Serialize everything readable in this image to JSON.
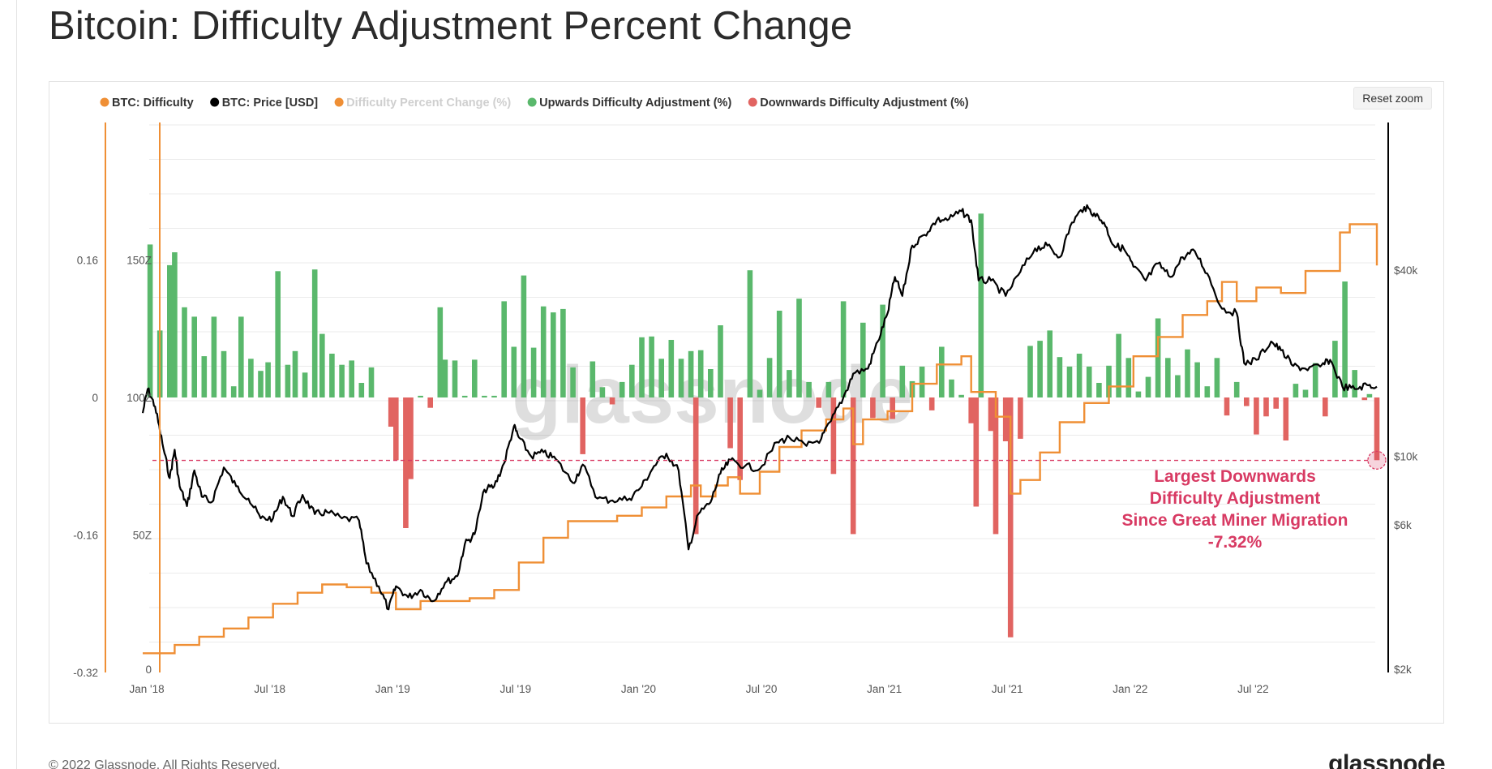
{
  "page": {
    "title": "Bitcoin: Difficulty Adjustment Percent Change",
    "copyright": "© 2022 Glassnode. All Rights Reserved.",
    "brand": "glassnode",
    "watermark": "glassnode"
  },
  "toolbar": {
    "reset_zoom_label": "Reset zoom"
  },
  "colors": {
    "difficulty": "#ef8f35",
    "price": "#000000",
    "percent_change": "#f4b27a",
    "upward": "#5ab86c",
    "downward": "#e16461",
    "annotation": "#d83a63",
    "grid": "#ebebeb"
  },
  "chart_data": {
    "type": "combo",
    "title": "Bitcoin: Difficulty Adjustment Percent Change",
    "legend": [
      {
        "label": "BTC: Difficulty",
        "color": "#ef8f35",
        "faded": false
      },
      {
        "label": "BTC: Price [USD]",
        "color": "#000000",
        "faded": false
      },
      {
        "label": "Difficulty Percent Change (%)",
        "color": "#ef8f35",
        "faded": true
      },
      {
        "label": "Upwards Difficulty Adjustment (%)",
        "color": "#5ab86c",
        "faded": false
      },
      {
        "label": "Downwards Difficulty Adjustment (%)",
        "color": "#e16461",
        "faded": false
      }
    ],
    "x_axis": {
      "start": 2017.97,
      "end": 2023.0,
      "ticks": [
        {
          "value": 2018.0,
          "label": "Jan '18"
        },
        {
          "value": 2018.5,
          "label": "Jul '18"
        },
        {
          "value": 2019.0,
          "label": "Jan '19"
        },
        {
          "value": 2019.5,
          "label": "Jul '19"
        },
        {
          "value": 2020.0,
          "label": "Jan '20"
        },
        {
          "value": 2020.5,
          "label": "Jul '20"
        },
        {
          "value": 2021.0,
          "label": "Jan '21"
        },
        {
          "value": 2021.5,
          "label": "Jul '21"
        },
        {
          "value": 2022.0,
          "label": "Jan '22"
        },
        {
          "value": 2022.5,
          "label": "Jul '22"
        }
      ]
    },
    "y_axis_percent": {
      "range": [
        -0.32,
        0.32
      ],
      "ticks": [
        {
          "value": 0.16,
          "label": "0.16"
        },
        {
          "value": 0,
          "label": "0"
        },
        {
          "value": -0.16,
          "label": "-0.16"
        },
        {
          "value": -0.32,
          "label": "-0.32"
        }
      ]
    },
    "y_axis_difficulty": {
      "unit": "Z",
      "range": [
        0,
        200
      ],
      "ticks": [
        {
          "value": 150,
          "label": "150Z"
        },
        {
          "value": 100,
          "label": "100Z"
        },
        {
          "value": 50,
          "label": "50Z"
        },
        {
          "value": 0,
          "label": "0"
        }
      ]
    },
    "y_axis_price": {
      "scale": "log",
      "range": [
        2000,
        120000
      ],
      "ticks": [
        {
          "value": 40000,
          "label": "$40k"
        },
        {
          "value": 10000,
          "label": "$10k"
        },
        {
          "value": 6000,
          "label": "$6k"
        },
        {
          "value": 2000,
          "label": "$2k"
        }
      ]
    },
    "adjustments": [
      {
        "t": 2018.0,
        "pct": 0.178
      },
      {
        "t": 2018.04,
        "pct": 0.078
      },
      {
        "t": 2018.08,
        "pct": 0.154
      },
      {
        "t": 2018.1,
        "pct": 0.169
      },
      {
        "t": 2018.14,
        "pct": 0.105
      },
      {
        "t": 2018.18,
        "pct": 0.094
      },
      {
        "t": 2018.22,
        "pct": 0.048
      },
      {
        "t": 2018.26,
        "pct": 0.094
      },
      {
        "t": 2018.3,
        "pct": 0.054
      },
      {
        "t": 2018.34,
        "pct": 0.013
      },
      {
        "t": 2018.37,
        "pct": 0.094
      },
      {
        "t": 2018.41,
        "pct": 0.045
      },
      {
        "t": 2018.45,
        "pct": 0.031
      },
      {
        "t": 2018.48,
        "pct": 0.041
      },
      {
        "t": 2018.52,
        "pct": 0.147
      },
      {
        "t": 2018.56,
        "pct": 0.038
      },
      {
        "t": 2018.59,
        "pct": 0.054
      },
      {
        "t": 2018.63,
        "pct": 0.029
      },
      {
        "t": 2018.67,
        "pct": 0.149
      },
      {
        "t": 2018.7,
        "pct": 0.074
      },
      {
        "t": 2018.74,
        "pct": 0.051
      },
      {
        "t": 2018.78,
        "pct": 0.038
      },
      {
        "t": 2018.82,
        "pct": 0.043
      },
      {
        "t": 2018.86,
        "pct": 0.017
      },
      {
        "t": 2018.9,
        "pct": 0.035
      },
      {
        "t": 2018.98,
        "pct": -0.034
      },
      {
        "t": 2019.0,
        "pct": -0.073
      },
      {
        "t": 2019.04,
        "pct": -0.152
      },
      {
        "t": 2019.06,
        "pct": -0.095
      },
      {
        "t": 2019.1,
        "pct": 0.002
      },
      {
        "t": 2019.14,
        "pct": -0.012
      },
      {
        "t": 2019.18,
        "pct": 0.105
      },
      {
        "t": 2019.2,
        "pct": 0.044
      },
      {
        "t": 2019.24,
        "pct": 0.043
      },
      {
        "t": 2019.28,
        "pct": 0.002
      },
      {
        "t": 2019.32,
        "pct": 0.044
      },
      {
        "t": 2019.36,
        "pct": 0.002
      },
      {
        "t": 2019.4,
        "pct": 0.002
      },
      {
        "t": 2019.44,
        "pct": 0.112
      },
      {
        "t": 2019.48,
        "pct": 0.059
      },
      {
        "t": 2019.52,
        "pct": 0.142
      },
      {
        "t": 2019.56,
        "pct": 0.058
      },
      {
        "t": 2019.6,
        "pct": 0.106
      },
      {
        "t": 2019.64,
        "pct": 0.099
      },
      {
        "t": 2019.68,
        "pct": 0.103
      },
      {
        "t": 2019.72,
        "pct": 0.035
      },
      {
        "t": 2019.76,
        "pct": -0.066
      },
      {
        "t": 2019.8,
        "pct": 0.042
      },
      {
        "t": 2019.84,
        "pct": 0.012
      },
      {
        "t": 2019.88,
        "pct": -0.008
      },
      {
        "t": 2019.92,
        "pct": 0.018
      },
      {
        "t": 2019.96,
        "pct": 0.038
      },
      {
        "t": 2020.0,
        "pct": 0.07
      },
      {
        "t": 2020.04,
        "pct": 0.071
      },
      {
        "t": 2020.08,
        "pct": 0.045
      },
      {
        "t": 2020.12,
        "pct": 0.067
      },
      {
        "t": 2020.16,
        "pct": 0.045
      },
      {
        "t": 2020.2,
        "pct": 0.054
      },
      {
        "t": 2020.22,
        "pct": -0.159
      },
      {
        "t": 2020.24,
        "pct": 0.055
      },
      {
        "t": 2020.28,
        "pct": 0.033
      },
      {
        "t": 2020.32,
        "pct": 0.084
      },
      {
        "t": 2020.36,
        "pct": -0.059
      },
      {
        "t": 2020.4,
        "pct": -0.096
      },
      {
        "t": 2020.44,
        "pct": 0.148
      },
      {
        "t": 2020.48,
        "pct": 0.009
      },
      {
        "t": 2020.52,
        "pct": 0.046
      },
      {
        "t": 2020.56,
        "pct": 0.101
      },
      {
        "t": 2020.6,
        "pct": 0.032
      },
      {
        "t": 2020.64,
        "pct": 0.115
      },
      {
        "t": 2020.68,
        "pct": 0.018
      },
      {
        "t": 2020.72,
        "pct": -0.012
      },
      {
        "t": 2020.76,
        "pct": 0.018
      },
      {
        "t": 2020.78,
        "pct": -0.089
      },
      {
        "t": 2020.82,
        "pct": 0.112
      },
      {
        "t": 2020.86,
        "pct": -0.159
      },
      {
        "t": 2020.9,
        "pct": 0.087
      },
      {
        "t": 2020.94,
        "pct": -0.024
      },
      {
        "t": 2020.98,
        "pct": 0.108
      },
      {
        "t": 2021.02,
        "pct": -0.025
      },
      {
        "t": 2021.06,
        "pct": 0.037
      },
      {
        "t": 2021.1,
        "pct": 0.019
      },
      {
        "t": 2021.14,
        "pct": 0.036
      },
      {
        "t": 2021.18,
        "pct": -0.015
      },
      {
        "t": 2021.22,
        "pct": 0.059
      },
      {
        "t": 2021.26,
        "pct": 0.021
      },
      {
        "t": 2021.3,
        "pct": 0.003
      },
      {
        "t": 2021.34,
        "pct": -0.03
      },
      {
        "t": 2021.36,
        "pct": -0.127
      },
      {
        "t": 2021.38,
        "pct": 0.214
      },
      {
        "t": 2021.42,
        "pct": -0.039
      },
      {
        "t": 2021.44,
        "pct": -0.159
      },
      {
        "t": 2021.48,
        "pct": -0.051
      },
      {
        "t": 2021.5,
        "pct": -0.279
      },
      {
        "t": 2021.54,
        "pct": -0.048
      },
      {
        "t": 2021.58,
        "pct": 0.06
      },
      {
        "t": 2021.62,
        "pct": 0.066
      },
      {
        "t": 2021.66,
        "pct": 0.078
      },
      {
        "t": 2021.7,
        "pct": 0.047
      },
      {
        "t": 2021.74,
        "pct": 0.036
      },
      {
        "t": 2021.78,
        "pct": 0.051
      },
      {
        "t": 2021.82,
        "pct": 0.036
      },
      {
        "t": 2021.86,
        "pct": 0.017
      },
      {
        "t": 2021.9,
        "pct": 0.037
      },
      {
        "t": 2021.94,
        "pct": 0.074
      },
      {
        "t": 2021.98,
        "pct": 0.046
      },
      {
        "t": 2022.02,
        "pct": 0.007
      },
      {
        "t": 2022.06,
        "pct": 0.024
      },
      {
        "t": 2022.1,
        "pct": 0.092
      },
      {
        "t": 2022.14,
        "pct": 0.046
      },
      {
        "t": 2022.18,
        "pct": 0.026
      },
      {
        "t": 2022.22,
        "pct": 0.056
      },
      {
        "t": 2022.26,
        "pct": 0.041
      },
      {
        "t": 2022.3,
        "pct": 0.013
      },
      {
        "t": 2022.34,
        "pct": 0.046
      },
      {
        "t": 2022.38,
        "pct": -0.021
      },
      {
        "t": 2022.42,
        "pct": 0.018
      },
      {
        "t": 2022.46,
        "pct": -0.01
      },
      {
        "t": 2022.5,
        "pct": -0.043
      },
      {
        "t": 2022.54,
        "pct": -0.022
      },
      {
        "t": 2022.58,
        "pct": -0.013
      },
      {
        "t": 2022.62,
        "pct": -0.05
      },
      {
        "t": 2022.66,
        "pct": 0.016
      },
      {
        "t": 2022.7,
        "pct": 0.009
      },
      {
        "t": 2022.74,
        "pct": 0.04
      },
      {
        "t": 2022.78,
        "pct": -0.022
      },
      {
        "t": 2022.82,
        "pct": 0.066
      },
      {
        "t": 2022.86,
        "pct": 0.135
      },
      {
        "t": 2022.9,
        "pct": 0.032
      },
      {
        "t": 2022.94,
        "pct": -0.003
      },
      {
        "t": 2022.96,
        "pct": 0.004
      },
      {
        "t": 2022.99,
        "pct": -0.073
      }
    ],
    "difficulty": [
      [
        2017.97,
        7
      ],
      [
        2018.1,
        10
      ],
      [
        2018.2,
        13
      ],
      [
        2018.3,
        16
      ],
      [
        2018.4,
        20
      ],
      [
        2018.5,
        25
      ],
      [
        2018.6,
        29
      ],
      [
        2018.7,
        32
      ],
      [
        2018.8,
        31
      ],
      [
        2018.9,
        29
      ],
      [
        2019.0,
        23
      ],
      [
        2019.1,
        26
      ],
      [
        2019.2,
        26
      ],
      [
        2019.3,
        27
      ],
      [
        2019.4,
        30
      ],
      [
        2019.5,
        40
      ],
      [
        2019.6,
        49
      ],
      [
        2019.7,
        55
      ],
      [
        2019.8,
        55
      ],
      [
        2019.9,
        57
      ],
      [
        2020.0,
        60
      ],
      [
        2020.1,
        64
      ],
      [
        2020.2,
        68
      ],
      [
        2020.24,
        64
      ],
      [
        2020.3,
        68
      ],
      [
        2020.35,
        71
      ],
      [
        2020.4,
        65
      ],
      [
        2020.48,
        73
      ],
      [
        2020.56,
        82
      ],
      [
        2020.65,
        88
      ],
      [
        2020.75,
        92
      ],
      [
        2020.82,
        96
      ],
      [
        2020.86,
        83
      ],
      [
        2020.9,
        92
      ],
      [
        2021.0,
        95
      ],
      [
        2021.1,
        105
      ],
      [
        2021.2,
        112
      ],
      [
        2021.3,
        115
      ],
      [
        2021.34,
        102
      ],
      [
        2021.38,
        102
      ],
      [
        2021.44,
        93
      ],
      [
        2021.5,
        65
      ],
      [
        2021.54,
        70
      ],
      [
        2021.62,
        80
      ],
      [
        2021.7,
        91
      ],
      [
        2021.8,
        98
      ],
      [
        2021.9,
        104
      ],
      [
        2022.0,
        115
      ],
      [
        2022.1,
        122
      ],
      [
        2022.2,
        130
      ],
      [
        2022.3,
        135
      ],
      [
        2022.36,
        142
      ],
      [
        2022.42,
        135
      ],
      [
        2022.5,
        140
      ],
      [
        2022.6,
        138
      ],
      [
        2022.7,
        146
      ],
      [
        2022.8,
        146
      ],
      [
        2022.84,
        160
      ],
      [
        2022.88,
        163
      ],
      [
        2022.96,
        163
      ],
      [
        2022.99,
        148
      ]
    ],
    "price": [
      [
        2017.97,
        13800
      ],
      [
        2017.99,
        16500
      ],
      [
        2018.02,
        14500
      ],
      [
        2018.05,
        11000
      ],
      [
        2018.08,
        8500
      ],
      [
        2018.1,
        10500
      ],
      [
        2018.12,
        8000
      ],
      [
        2018.15,
        6900
      ],
      [
        2018.18,
        9000
      ],
      [
        2018.21,
        7400
      ],
      [
        2018.25,
        7100
      ],
      [
        2018.3,
        9200
      ],
      [
        2018.35,
        8000
      ],
      [
        2018.4,
        7300
      ],
      [
        2018.45,
        6300
      ],
      [
        2018.5,
        6300
      ],
      [
        2018.54,
        7400
      ],
      [
        2018.58,
        6400
      ],
      [
        2018.62,
        7500
      ],
      [
        2018.67,
        6500
      ],
      [
        2018.72,
        6600
      ],
      [
        2018.78,
        6300
      ],
      [
        2018.85,
        6200
      ],
      [
        2018.88,
        4500
      ],
      [
        2018.93,
        3800
      ],
      [
        2018.97,
        3200
      ],
      [
        2019.0,
        3800
      ],
      [
        2019.05,
        3500
      ],
      [
        2019.1,
        3700
      ],
      [
        2019.15,
        3400
      ],
      [
        2019.2,
        3900
      ],
      [
        2019.25,
        4100
      ],
      [
        2019.28,
        5200
      ],
      [
        2019.32,
        5600
      ],
      [
        2019.36,
        7800
      ],
      [
        2019.4,
        8000
      ],
      [
        2019.44,
        9500
      ],
      [
        2019.48,
        12500
      ],
      [
        2019.5,
        11500
      ],
      [
        2019.55,
        10000
      ],
      [
        2019.6,
        10300
      ],
      [
        2019.65,
        9800
      ],
      [
        2019.72,
        8200
      ],
      [
        2019.76,
        9400
      ],
      [
        2019.82,
        7300
      ],
      [
        2019.88,
        7200
      ],
      [
        2019.95,
        7300
      ],
      [
        2020.0,
        8000
      ],
      [
        2020.05,
        9300
      ],
      [
        2020.1,
        10200
      ],
      [
        2020.15,
        9000
      ],
      [
        2020.19,
        5000
      ],
      [
        2020.23,
        6500
      ],
      [
        2020.28,
        7100
      ],
      [
        2020.32,
        8800
      ],
      [
        2020.36,
        9700
      ],
      [
        2020.42,
        9300
      ],
      [
        2020.48,
        9100
      ],
      [
        2020.55,
        11100
      ],
      [
        2020.6,
        11500
      ],
      [
        2020.67,
        10800
      ],
      [
        2020.73,
        11400
      ],
      [
        2020.77,
        13000
      ],
      [
        2020.82,
        15500
      ],
      [
        2020.86,
        18500
      ],
      [
        2020.92,
        19200
      ],
      [
        2020.96,
        23500
      ],
      [
        2021.0,
        29000
      ],
      [
        2021.03,
        38000
      ],
      [
        2021.06,
        33000
      ],
      [
        2021.1,
        48000
      ],
      [
        2021.15,
        52000
      ],
      [
        2021.2,
        58000
      ],
      [
        2021.25,
        58500
      ],
      [
        2021.3,
        62000
      ],
      [
        2021.34,
        58000
      ],
      [
        2021.37,
        37000
      ],
      [
        2021.42,
        37000
      ],
      [
        2021.48,
        33000
      ],
      [
        2021.54,
        39500
      ],
      [
        2021.6,
        47000
      ],
      [
        2021.65,
        48000
      ],
      [
        2021.7,
        44000
      ],
      [
        2021.75,
        57000
      ],
      [
        2021.8,
        64000
      ],
      [
        2021.84,
        61000
      ],
      [
        2021.88,
        57000
      ],
      [
        2021.92,
        48000
      ],
      [
        2021.96,
        47000
      ],
      [
        2022.0,
        41000
      ],
      [
        2022.05,
        37000
      ],
      [
        2022.1,
        42000
      ],
      [
        2022.15,
        38000
      ],
      [
        2022.2,
        44000
      ],
      [
        2022.25,
        46000
      ],
      [
        2022.3,
        39000
      ],
      [
        2022.36,
        30000
      ],
      [
        2022.42,
        29000
      ],
      [
        2022.45,
        20000
      ],
      [
        2022.5,
        20500
      ],
      [
        2022.56,
        23500
      ],
      [
        2022.6,
        22000
      ],
      [
        2022.65,
        19600
      ],
      [
        2022.7,
        19200
      ],
      [
        2022.76,
        19500
      ],
      [
        2022.8,
        20500
      ],
      [
        2022.85,
        16800
      ],
      [
        2022.9,
        16500
      ],
      [
        2022.95,
        17000
      ],
      [
        2022.99,
        16800
      ]
    ],
    "reference_line": {
      "value": -0.0732
    },
    "annotation": {
      "lines": [
        "Largest Downwards",
        "Difficulty Adjustment",
        "Since Great Miner Migration",
        "-7.32%"
      ]
    }
  }
}
